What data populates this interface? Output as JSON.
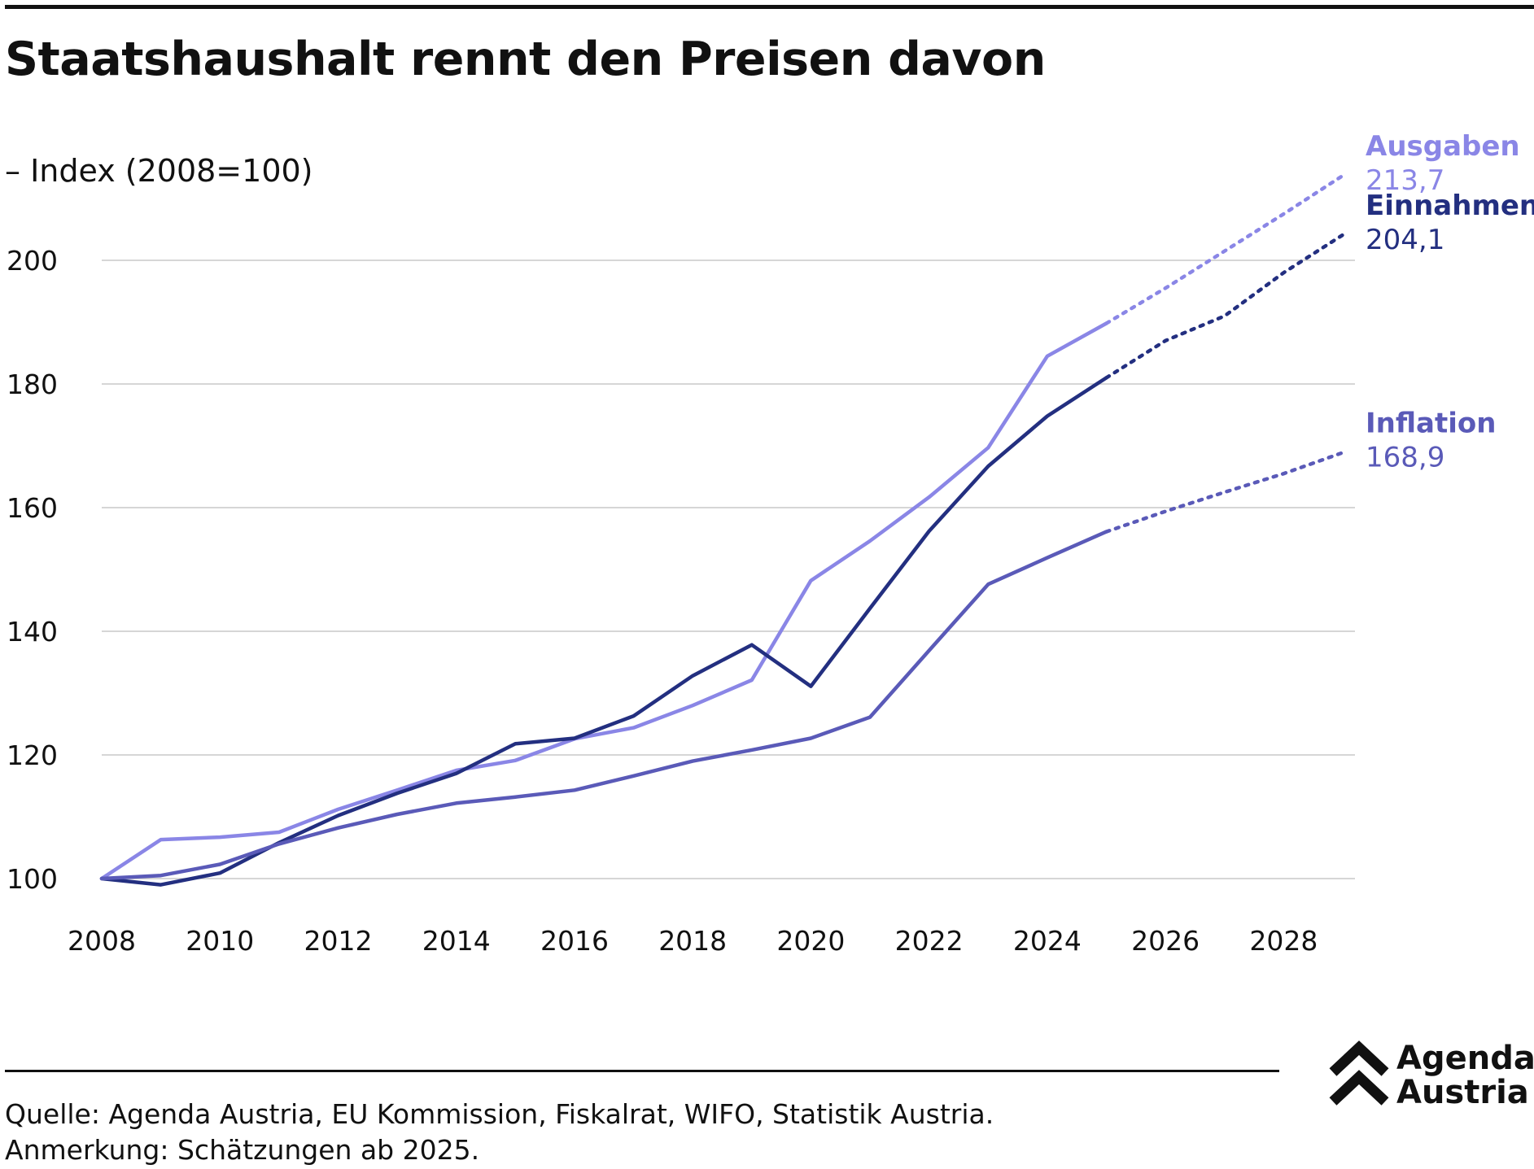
{
  "title": "Staatshaushalt rennt den Preisen davon",
  "subtitle": "– Index (2008=100)",
  "footer": {
    "source": "Quelle: Agenda Austria, EU Kommission, Fiskalrat, WIFO, Statistik Austria.",
    "note": "Anmerkung: Schätzungen ab 2025."
  },
  "logo": {
    "line1": "Agenda",
    "line2": "Austria",
    "icon": "double-chevron-up-icon"
  },
  "chart_data": {
    "type": "line",
    "title": "Staatshaushalt rennt den Preisen davon",
    "ylabel": "– Index (2008=100)",
    "xlabel": "",
    "x": [
      2008,
      2009,
      2010,
      2011,
      2012,
      2013,
      2014,
      2015,
      2016,
      2017,
      2018,
      2019,
      2020,
      2021,
      2022,
      2023,
      2024,
      2025,
      2026,
      2027,
      2028,
      2029
    ],
    "estimate_from": 2025,
    "xlim": [
      2008,
      2029
    ],
    "ylim": [
      90,
      210
    ],
    "xticks": [
      "2008",
      "2010",
      "2012",
      "2014",
      "2016",
      "2018",
      "2020",
      "2022",
      "2024",
      "2026",
      "2028"
    ],
    "yticks": [
      "100",
      "120",
      "140",
      "160",
      "180",
      "200"
    ],
    "grid": "horizontal",
    "series": [
      {
        "name": "Ausgaben",
        "end_label": "213,7",
        "color": "#8a86e6",
        "values": [
          100,
          106.3,
          106.7,
          107.5,
          111.2,
          114.3,
          117.5,
          119.1,
          122.6,
          124.4,
          128.0,
          132.1,
          148.2,
          154.6,
          161.7,
          169.7,
          184.5,
          189.8,
          195.5,
          201.5,
          207.5,
          213.7
        ]
      },
      {
        "name": "Einnahmen",
        "end_label": "204,1",
        "color": "#232f80",
        "values": [
          100,
          99.0,
          100.9,
          105.8,
          110.2,
          113.8,
          117.0,
          121.8,
          122.7,
          126.3,
          132.8,
          137.8,
          131.1,
          143.7,
          156.2,
          166.7,
          174.8,
          181.0,
          187.0,
          191.0,
          198.0,
          204.1
        ]
      },
      {
        "name": "Inflation",
        "end_label": "168,9",
        "color": "#5a5ab8",
        "values": [
          100,
          100.5,
          102.3,
          105.6,
          108.2,
          110.4,
          112.2,
          113.2,
          114.3,
          116.6,
          119.0,
          120.8,
          122.7,
          126.1,
          136.9,
          147.6,
          151.9,
          156.1,
          159.4,
          162.5,
          165.5,
          168.9
        ]
      }
    ]
  }
}
